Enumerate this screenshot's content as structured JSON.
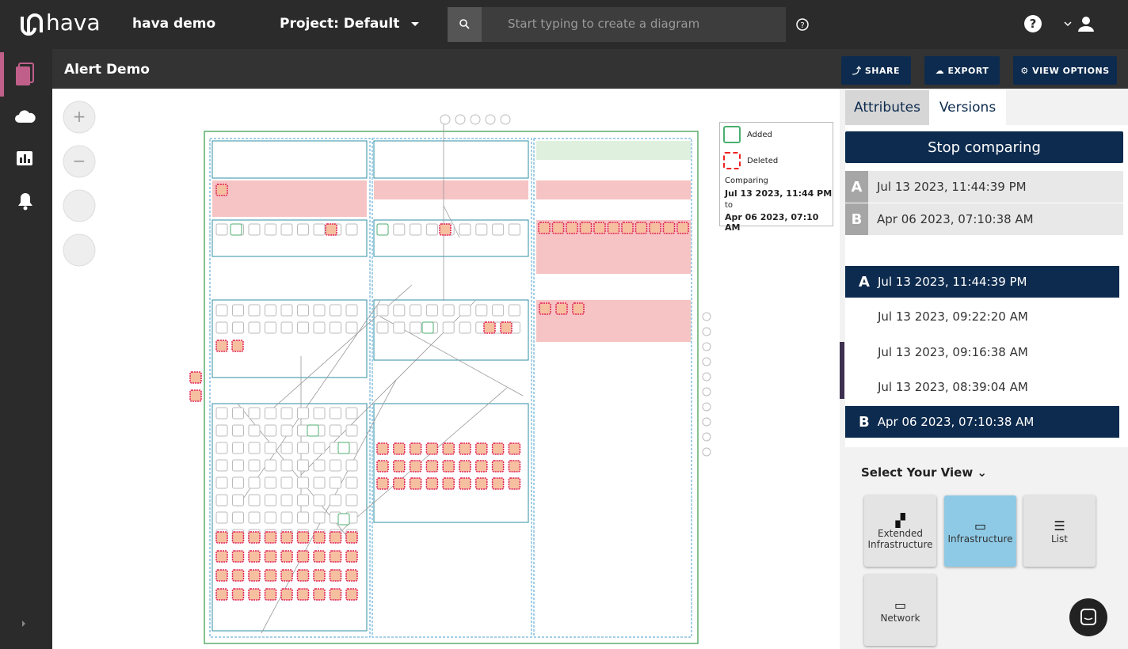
{
  "header": {
    "logo": "hava",
    "account": "hava demo",
    "project": "Project: Default",
    "search_placeholder": "Start typing to create a diagram"
  },
  "toolbar": {
    "title": "Alert Demo",
    "buttons": [
      "SHARE",
      "EXPORT",
      "VIEW OPTIONS"
    ]
  },
  "legend": {
    "added": "Added",
    "deleted": "Deleted",
    "comparing": "Comparing",
    "from": "Jul 13 2023, 11:44 PM",
    "to_word": "to",
    "to": "Apr 06 2023, 07:10 AM"
  },
  "panel": {
    "tabs": [
      "Attributes",
      "Versions"
    ],
    "stop": "Stop comparing",
    "compare": [
      {
        "marker": "A",
        "date": "Jul 13 2023, 11:44:39 PM"
      },
      {
        "marker": "B",
        "date": "Apr 06 2023, 07:10:38 AM"
      }
    ],
    "versions": [
      {
        "marker": "A",
        "date": "Jul 13 2023, 11:44:39 PM"
      },
      {
        "date": "Jul 13 2023, 09:22:20 AM"
      },
      {
        "date": "Jul 13 2023, 09:16:38 AM"
      },
      {
        "date": "Jul 13 2023, 08:39:04 AM"
      },
      {
        "marker": "B",
        "date": "Apr 06 2023, 07:10:38 AM"
      }
    ],
    "view_title": "Select Your View",
    "views": [
      "Extended Infrastructure",
      "Infrastructure",
      "List",
      "Network"
    ]
  }
}
